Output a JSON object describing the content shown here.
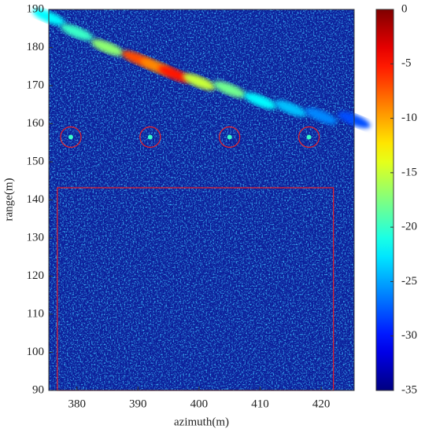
{
  "chart_data": {
    "type": "heatmap",
    "colormap": "jet",
    "xlabel": "azimuth(m)",
    "ylabel": "range(m)",
    "xlim": [
      375.4,
      425.4
    ],
    "ylim": [
      90,
      190
    ],
    "xticks": [
      380,
      390,
      400,
      410,
      420
    ],
    "yticks": [
      90,
      100,
      110,
      120,
      130,
      140,
      150,
      160,
      170,
      180,
      190
    ],
    "clim": [
      -35,
      0
    ],
    "cticks": [
      0,
      -5,
      -10,
      -15,
      -20,
      -25,
      -30,
      -35
    ],
    "streak": {
      "x": [
        375.4,
        380,
        385,
        390,
        393,
        396,
        400,
        405,
        410,
        415,
        420,
        425.4
      ],
      "y": [
        188,
        184,
        180,
        177,
        175,
        173,
        171,
        169,
        166,
        164,
        162,
        161
      ],
      "values": [
        -22,
        -20,
        -17,
        -7,
        -9,
        -5,
        -15,
        -18,
        -22,
        -24,
        -26,
        -28
      ]
    },
    "targets": {
      "x": [
        379,
        392,
        405,
        418
      ],
      "y": [
        156.5,
        156.5,
        156.5,
        156.5
      ],
      "values": [
        -20,
        -20,
        -20,
        -20
      ],
      "color": "#e8202a"
    },
    "region": {
      "x": [
        376.8,
        422
      ],
      "y": [
        90,
        143.2
      ],
      "color": "#e8202a"
    }
  }
}
